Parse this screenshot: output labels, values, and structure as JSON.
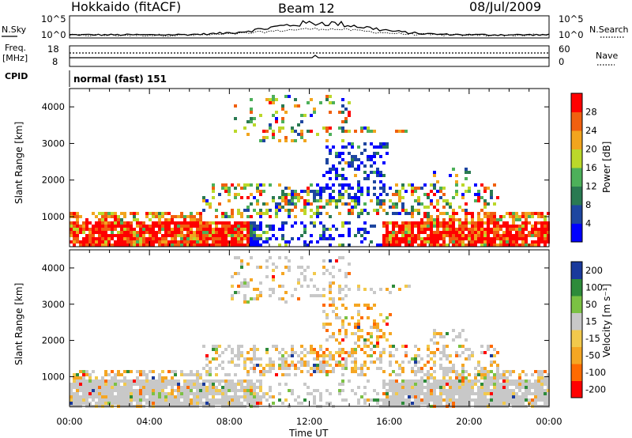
{
  "header": {
    "station": "Hokkaido (fitACF)",
    "beam": "Beam 12",
    "date": "08/Jul/2009"
  },
  "side_labels": {
    "n_sky": "N.Sky",
    "freq": "Freq.",
    "freq_unit": "[MHz]",
    "cpid": "CPID",
    "n_search": "N.Search",
    "nave": "Nave"
  },
  "count_panel": {
    "left_ticks": [
      "10^5",
      "10^0"
    ],
    "right_ticks": [
      "10^5",
      "10^0"
    ]
  },
  "freq_panel": {
    "left_ticks": [
      "18",
      "8"
    ],
    "right_ticks": [
      "60",
      "0"
    ]
  },
  "cpid_text": "normal (fast) 151",
  "colors": {
    "power": [
      "#0000ff",
      "#1e46a0",
      "#2a7a52",
      "#4db05a",
      "#bbd82a",
      "#f2a51e",
      "#f06010",
      "#ff0000"
    ],
    "velocity": [
      "#ff0000",
      "#ff6a00",
      "#f5a623",
      "#f2c94c",
      "#c8c8c8",
      "#7bc143",
      "#2e8b3a",
      "#1a3a9c"
    ]
  },
  "chart_data": [
    {
      "type": "heatmap",
      "quantity": "Power",
      "ylabel": "Slant Range [km]",
      "xlabel": "Time UT",
      "x_ticks": [
        "00:00",
        "04:00",
        "08:00",
        "12:00",
        "16:00",
        "20:00",
        "00:00"
      ],
      "y_ticks": [
        1000,
        2000,
        3000,
        4000
      ],
      "ylim": [
        180,
        4500
      ],
      "colorbar": {
        "label": "Power [dB]",
        "ticks": [
          4,
          8,
          12,
          16,
          20,
          24,
          28
        ],
        "range": [
          0,
          32
        ]
      }
    },
    {
      "type": "heatmap",
      "quantity": "Velocity",
      "ylabel": "Slant Range [km]",
      "xlabel": "Time UT",
      "x_ticks": [
        "00:00",
        "04:00",
        "08:00",
        "12:00",
        "16:00",
        "20:00",
        "00:00"
      ],
      "y_ticks": [
        1000,
        2000,
        3000,
        4000
      ],
      "ylim": [
        180,
        4500
      ],
      "colorbar": {
        "label": "Velocity [m s⁻¹]",
        "ticks": [
          "-200",
          "-100",
          "-50",
          "-15",
          "15",
          "50",
          "100",
          "200"
        ]
      }
    }
  ]
}
